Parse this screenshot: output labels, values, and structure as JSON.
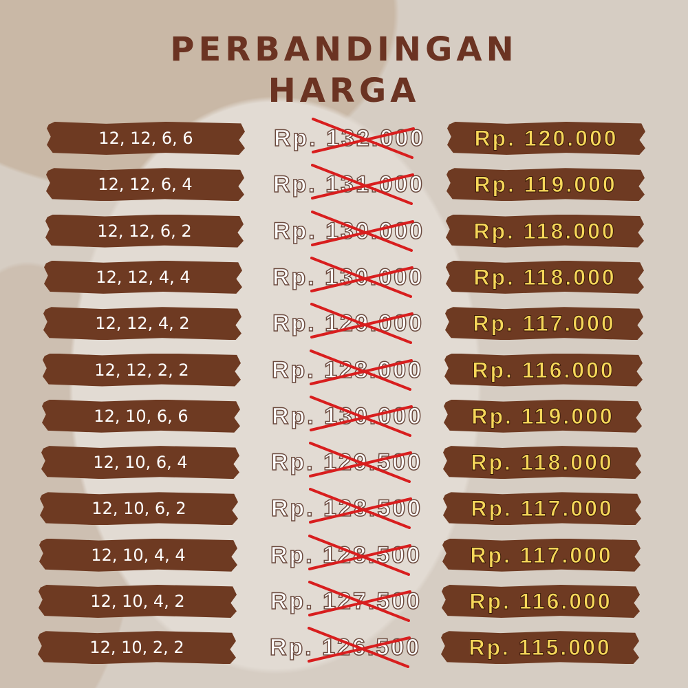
{
  "title": {
    "line1": "PERBANDINGAN",
    "line2": "HARGA"
  },
  "colors": {
    "bar": "#6e3a22",
    "title": "#6b3322",
    "new_price": "#f6d75a",
    "strike": "#d81e1e"
  },
  "rows": [
    {
      "spec": "12, 12, 6, 6",
      "old_price": "Rp. 132.000",
      "new_price": "Rp. 120.000"
    },
    {
      "spec": "12, 12, 6, 4",
      "old_price": "Rp. 131.000",
      "new_price": "Rp. 119.000"
    },
    {
      "spec": "12, 12, 6, 2",
      "old_price": "Rp. 130.000",
      "new_price": "Rp. 118.000"
    },
    {
      "spec": "12, 12, 4, 4",
      "old_price": "Rp. 130.000",
      "new_price": "Rp. 118.000"
    },
    {
      "spec": "12, 12, 4, 2",
      "old_price": "Rp. 129.000",
      "new_price": "Rp. 117.000"
    },
    {
      "spec": "12, 12, 2, 2",
      "old_price": "Rp. 128.000",
      "new_price": "Rp. 116.000"
    },
    {
      "spec": "12, 10, 6, 6",
      "old_price": "Rp. 130.000",
      "new_price": "Rp. 119.000"
    },
    {
      "spec": "12, 10, 6, 4",
      "old_price": "Rp. 129.500",
      "new_price": "Rp. 118.000"
    },
    {
      "spec": "12, 10, 6, 2",
      "old_price": "Rp. 128.500",
      "new_price": "Rp. 117.000"
    },
    {
      "spec": "12, 10, 4, 4",
      "old_price": "Rp. 128.500",
      "new_price": "Rp. 117.000"
    },
    {
      "spec": "12, 10, 4, 2",
      "old_price": "Rp. 127.500",
      "new_price": "Rp. 116.000"
    },
    {
      "spec": "12, 10, 2, 2",
      "old_price": "Rp. 126.500",
      "new_price": "Rp. 115.000"
    }
  ]
}
